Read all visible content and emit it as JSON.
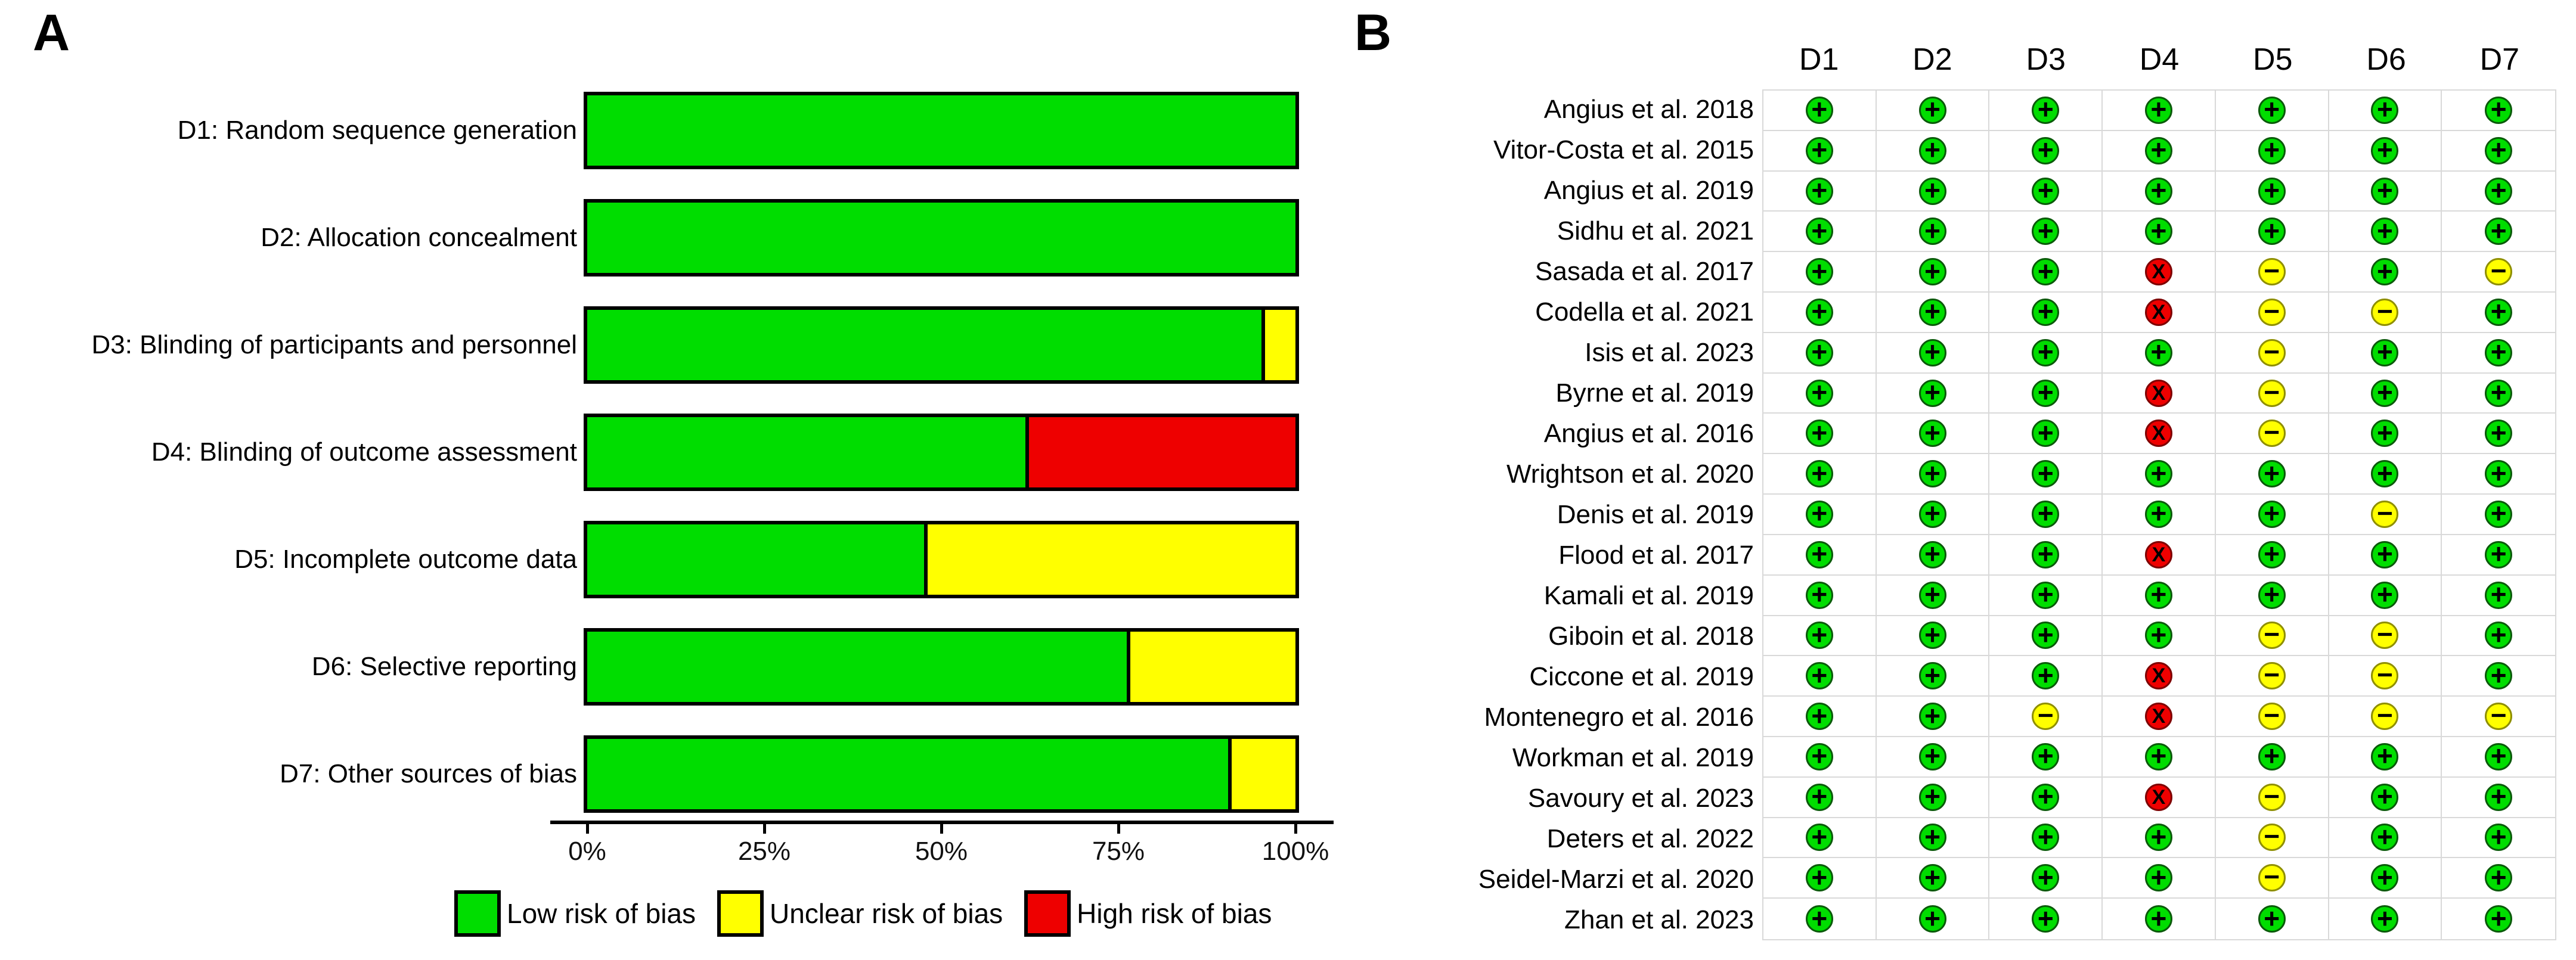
{
  "panel_a": {
    "label": "A",
    "legend": [
      {
        "key": "low",
        "label": "Low risk of bias",
        "color": "#00DD00"
      },
      {
        "key": "unclear",
        "label": "Unclear risk of bias",
        "color": "#FFFF00"
      },
      {
        "key": "high",
        "label": "High risk of bias",
        "color": "#EE0000"
      }
    ]
  },
  "panel_b": {
    "label": "B",
    "columns": [
      "D1",
      "D2",
      "D3",
      "D4",
      "D5",
      "D6",
      "D7"
    ],
    "symbols": {
      "low": "+",
      "unclear": "−",
      "high": "X"
    },
    "colors": {
      "low": "#00DD00",
      "unclear": "#FFFF00",
      "high": "#EE0000"
    },
    "border_colors": {
      "low": "#0A5A0A",
      "unclear": "#8F8F00",
      "high": "#7E0000"
    }
  },
  "chart_data": [
    {
      "type": "bar",
      "panel": "A",
      "orientation": "horizontal-stacked",
      "title": "",
      "xlabel": "",
      "ylabel": "",
      "categories": [
        "D1: Random sequence generation",
        "D2: Allocation concealment",
        "D3: Blinding of participants and personnel",
        "D4: Blinding of outcome assessment",
        "D5: Incomplete outcome data",
        "D6: Selective reporting",
        "D7: Other sources of bias"
      ],
      "series": [
        {
          "name": "Low risk of bias",
          "color": "#00DD00",
          "values": [
            100,
            100,
            95.2,
            61.9,
            47.6,
            76.2,
            90.5
          ]
        },
        {
          "name": "Unclear risk of bias",
          "color": "#FFFF00",
          "values": [
            0,
            0,
            4.8,
            0,
            52.4,
            23.8,
            9.5
          ]
        },
        {
          "name": "High risk of bias",
          "color": "#EE0000",
          "values": [
            0,
            0,
            0,
            38.1,
            0,
            0,
            0
          ]
        }
      ],
      "x_ticks": [
        "0%",
        "25%",
        "50%",
        "75%",
        "100%"
      ],
      "xlim": [
        0,
        100
      ],
      "grid": false,
      "legend_position": "bottom"
    },
    {
      "type": "table",
      "panel": "B",
      "columns": [
        "D1",
        "D2",
        "D3",
        "D4",
        "D5",
        "D6",
        "D7"
      ],
      "rows": [
        {
          "name": "Angius et al. 2018",
          "judgments": [
            "low",
            "low",
            "low",
            "low",
            "low",
            "low",
            "low"
          ]
        },
        {
          "name": "Vitor-Costa et al. 2015",
          "judgments": [
            "low",
            "low",
            "low",
            "low",
            "low",
            "low",
            "low"
          ]
        },
        {
          "name": "Angius et al. 2019",
          "judgments": [
            "low",
            "low",
            "low",
            "low",
            "low",
            "low",
            "low"
          ]
        },
        {
          "name": "Sidhu et al. 2021",
          "judgments": [
            "low",
            "low",
            "low",
            "low",
            "low",
            "low",
            "low"
          ]
        },
        {
          "name": "Sasada et al. 2017",
          "judgments": [
            "low",
            "low",
            "low",
            "high",
            "unclear",
            "low",
            "unclear"
          ]
        },
        {
          "name": "Codella et al. 2021",
          "judgments": [
            "low",
            "low",
            "low",
            "high",
            "unclear",
            "unclear",
            "low"
          ]
        },
        {
          "name": "Isis et al. 2023",
          "judgments": [
            "low",
            "low",
            "low",
            "low",
            "unclear",
            "low",
            "low"
          ]
        },
        {
          "name": "Byrne et al. 2019",
          "judgments": [
            "low",
            "low",
            "low",
            "high",
            "unclear",
            "low",
            "low"
          ]
        },
        {
          "name": "Angius et al. 2016",
          "judgments": [
            "low",
            "low",
            "low",
            "high",
            "unclear",
            "low",
            "low"
          ]
        },
        {
          "name": "Wrightson et al. 2020",
          "judgments": [
            "low",
            "low",
            "low",
            "low",
            "low",
            "low",
            "low"
          ]
        },
        {
          "name": "Denis et al. 2019",
          "judgments": [
            "low",
            "low",
            "low",
            "low",
            "low",
            "unclear",
            "low"
          ]
        },
        {
          "name": "Flood et al. 2017",
          "judgments": [
            "low",
            "low",
            "low",
            "high",
            "low",
            "low",
            "low"
          ]
        },
        {
          "name": "Kamali et al. 2019",
          "judgments": [
            "low",
            "low",
            "low",
            "low",
            "low",
            "low",
            "low"
          ]
        },
        {
          "name": "Giboin et al. 2018",
          "judgments": [
            "low",
            "low",
            "low",
            "low",
            "unclear",
            "unclear",
            "low"
          ]
        },
        {
          "name": "Ciccone et al. 2019",
          "judgments": [
            "low",
            "low",
            "low",
            "high",
            "unclear",
            "unclear",
            "low"
          ]
        },
        {
          "name": "Montenegro et al. 2016",
          "judgments": [
            "low",
            "low",
            "unclear",
            "high",
            "unclear",
            "unclear",
            "unclear"
          ]
        },
        {
          "name": "Workman et al. 2019",
          "judgments": [
            "low",
            "low",
            "low",
            "low",
            "low",
            "low",
            "low"
          ]
        },
        {
          "name": "Savoury et al. 2023",
          "judgments": [
            "low",
            "low",
            "low",
            "high",
            "unclear",
            "low",
            "low"
          ]
        },
        {
          "name": "Deters et al. 2022",
          "judgments": [
            "low",
            "low",
            "low",
            "low",
            "unclear",
            "low",
            "low"
          ]
        },
        {
          "name": "Seidel-Marzi et al. 2020",
          "judgments": [
            "low",
            "low",
            "low",
            "low",
            "unclear",
            "low",
            "low"
          ]
        },
        {
          "name": "Zhan et al. 2023",
          "judgments": [
            "low",
            "low",
            "low",
            "low",
            "low",
            "low",
            "low"
          ]
        }
      ]
    }
  ]
}
